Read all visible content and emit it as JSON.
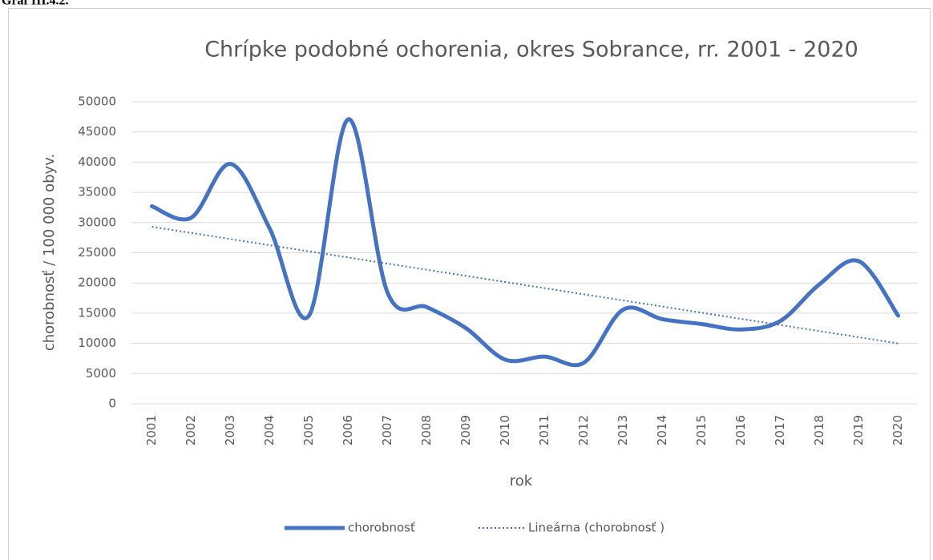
{
  "caption": "Graf III.4.2.",
  "chart_data": {
    "type": "line",
    "title": "Chrípke podobné ochorenia, okres Sobrance, rr. 2001 - 2020",
    "x_label": "rok",
    "y_label": "chorobnosť / 100 000 obyv.",
    "categories": [
      "2001",
      "2002",
      "2003",
      "2004",
      "2005",
      "2006",
      "2007",
      "2008",
      "2009",
      "2010",
      "2011",
      "2012",
      "2013",
      "2014",
      "2015",
      "2016",
      "2017",
      "2018",
      "2019",
      "2020"
    ],
    "series": [
      {
        "name": "chorobnosť",
        "color": "#4472c4",
        "style": "solid",
        "values": [
          32700,
          30800,
          39700,
          29000,
          14600,
          47100,
          18400,
          16000,
          12500,
          7300,
          7800,
          6800,
          15600,
          14000,
          13200,
          12300,
          13700,
          19800,
          23600,
          14600
        ]
      },
      {
        "name": "Lineárna (chorobnosť )",
        "color": "#4472c4",
        "style": "dotted",
        "values": [
          29300,
          28284,
          27268,
          26252,
          25236,
          24220,
          23204,
          22188,
          21172,
          20156,
          19140,
          18124,
          17108,
          16092,
          15076,
          14060,
          13044,
          12028,
          11012,
          9996
        ]
      }
    ],
    "ylim": [
      0,
      50000
    ],
    "yticks": [
      0,
      5000,
      10000,
      15000,
      20000,
      25000,
      30000,
      35000,
      40000,
      45000,
      50000
    ],
    "grid": true,
    "legend": "bottom"
  }
}
